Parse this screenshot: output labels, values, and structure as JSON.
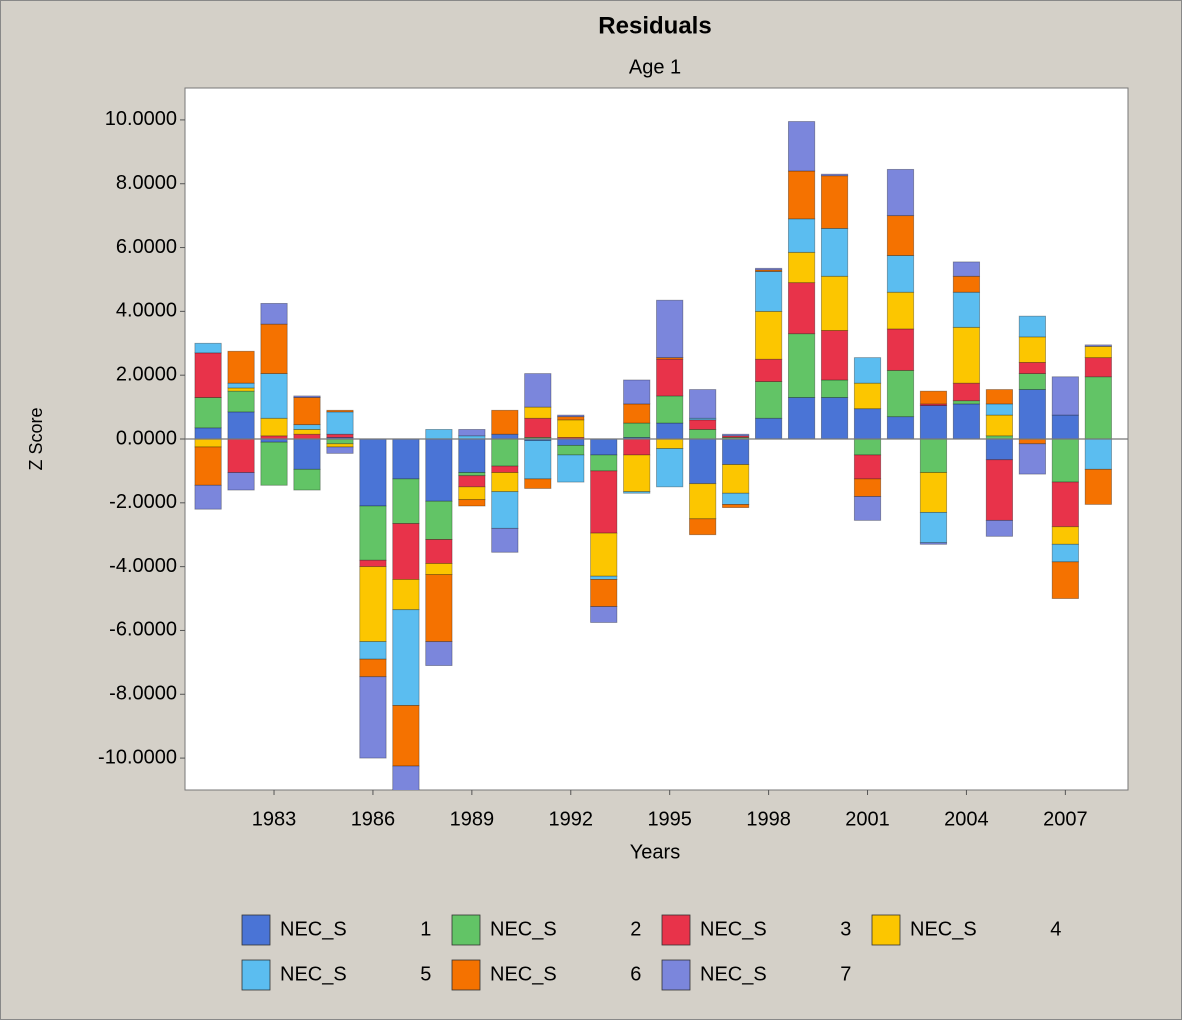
{
  "chart_data": {
    "type": "stacked_bar",
    "title": "Residuals",
    "subtitle": "Age 1",
    "x_label": "Years",
    "y_label": "Z Score",
    "x": [
      1981,
      1982,
      1983,
      1984,
      1985,
      1986,
      1987,
      1988,
      1989,
      1990,
      1991,
      1992,
      1993,
      1994,
      1995,
      1996,
      1997,
      1998,
      1999,
      2000,
      2001,
      2002,
      2003,
      2004,
      2005,
      2006,
      2007,
      2008
    ],
    "xlim": [
      1980.3,
      2008.9
    ],
    "xticks": [
      1983,
      1986,
      1989,
      1992,
      1995,
      1998,
      2001,
      2004,
      2007
    ],
    "ylim": [
      -11,
      11
    ],
    "yticks": [
      {
        "value": 10,
        "label": "10.0000"
      },
      {
        "value": 8,
        "label": "8.0000"
      },
      {
        "value": 6,
        "label": "6.0000"
      },
      {
        "value": 4,
        "label": "4.0000"
      },
      {
        "value": 2,
        "label": "2.0000"
      },
      {
        "value": 0,
        "label": "0.0000"
      },
      {
        "value": -2,
        "label": "-2.0000"
      },
      {
        "value": -4,
        "label": "-4.0000"
      },
      {
        "value": -6,
        "label": "-6.0000"
      },
      {
        "value": -8,
        "label": "-8.0000"
      },
      {
        "value": -10,
        "label": "-10.0000"
      }
    ],
    "series": [
      {
        "name": "NEC_S 1",
        "color": "#4a74d6",
        "values": [
          0.35,
          0.85,
          -0.1,
          -0.95,
          0.05,
          -2.1,
          -1.25,
          -1.95,
          -1.05,
          0.15,
          -0.05,
          -0.2,
          -0.5,
          0.05,
          0.5,
          -1.4,
          -0.8,
          0.65,
          1.3,
          1.3,
          0.95,
          0.7,
          1.05,
          1.1,
          -0.65,
          1.55,
          0.75,
          0
        ]
      },
      {
        "name": "NEC_S 2",
        "color": "#62c466",
        "values": [
          0.95,
          0.65,
          -1.35,
          -0.65,
          -0.15,
          -1.7,
          -1.4,
          -1.2,
          -0.1,
          -0.85,
          0.05,
          -0.3,
          -0.5,
          0.45,
          0.85,
          0.3,
          0.05,
          1.15,
          2.0,
          0.55,
          -0.5,
          1.45,
          -1.05,
          0.1,
          0.1,
          0.5,
          -1.35,
          1.95
        ]
      },
      {
        "name": "NEC_S 3",
        "color": "#e8334a",
        "values": [
          1.4,
          -1.05,
          0.1,
          0.15,
          0.1,
          -0.2,
          -1.75,
          -0.75,
          -0.35,
          -0.2,
          0.6,
          0.05,
          -1.95,
          -0.5,
          1.15,
          0.3,
          0.05,
          0.7,
          1.6,
          1.55,
          -0.75,
          1.3,
          0.05,
          0.55,
          -1.9,
          0.35,
          -1.4,
          0.6
        ]
      },
      {
        "name": "NEC_S 4",
        "color": "#fcc600",
        "values": [
          -0.25,
          0.1,
          0.55,
          0.15,
          -0.1,
          -2.35,
          -0.95,
          -0.35,
          -0.4,
          -0.6,
          0.35,
          0.55,
          -1.35,
          -1.15,
          -0.3,
          -1.1,
          -0.9,
          1.5,
          0.95,
          1.7,
          0.8,
          1.15,
          -1.25,
          1.75,
          0.65,
          0.8,
          -0.55,
          0.35
        ]
      },
      {
        "name": "NEC_S 5",
        "color": "#5bbdf0",
        "values": [
          0.3,
          0.15,
          1.4,
          0.15,
          0.7,
          -0.55,
          -3.0,
          0.3,
          0.1,
          -1.15,
          -1.2,
          -0.85,
          -0.1,
          -0.05,
          -1.2,
          0.05,
          -0.35,
          1.25,
          1.05,
          1.5,
          0.8,
          1.15,
          -0.95,
          1.1,
          0.35,
          0.65,
          -0.55,
          -0.95
        ]
      },
      {
        "name": "NEC_S 6",
        "color": "#f57200",
        "values": [
          -1.2,
          1.0,
          1.55,
          0.85,
          0.05,
          -0.55,
          -1.9,
          -2.1,
          -0.2,
          0.75,
          -0.3,
          0.1,
          -0.85,
          0.6,
          0.05,
          -0.5,
          -0.1,
          0.05,
          1.5,
          1.65,
          -0.55,
          1.25,
          0.4,
          0.5,
          0.45,
          -0.15,
          -1.15,
          -1.1
        ]
      },
      {
        "name": "NEC_S 7",
        "color": "#7b86dc",
        "values": [
          -0.75,
          -0.55,
          0.65,
          0.05,
          -0.2,
          -2.55,
          -1.0,
          -0.75,
          0.2,
          -0.75,
          1.05,
          0.05,
          -0.5,
          0.75,
          1.8,
          0.9,
          0.05,
          0.05,
          1.55,
          0.05,
          -0.75,
          1.45,
          -0.05,
          0.45,
          -0.5,
          -0.95,
          1.2,
          0.05
        ]
      }
    ]
  }
}
